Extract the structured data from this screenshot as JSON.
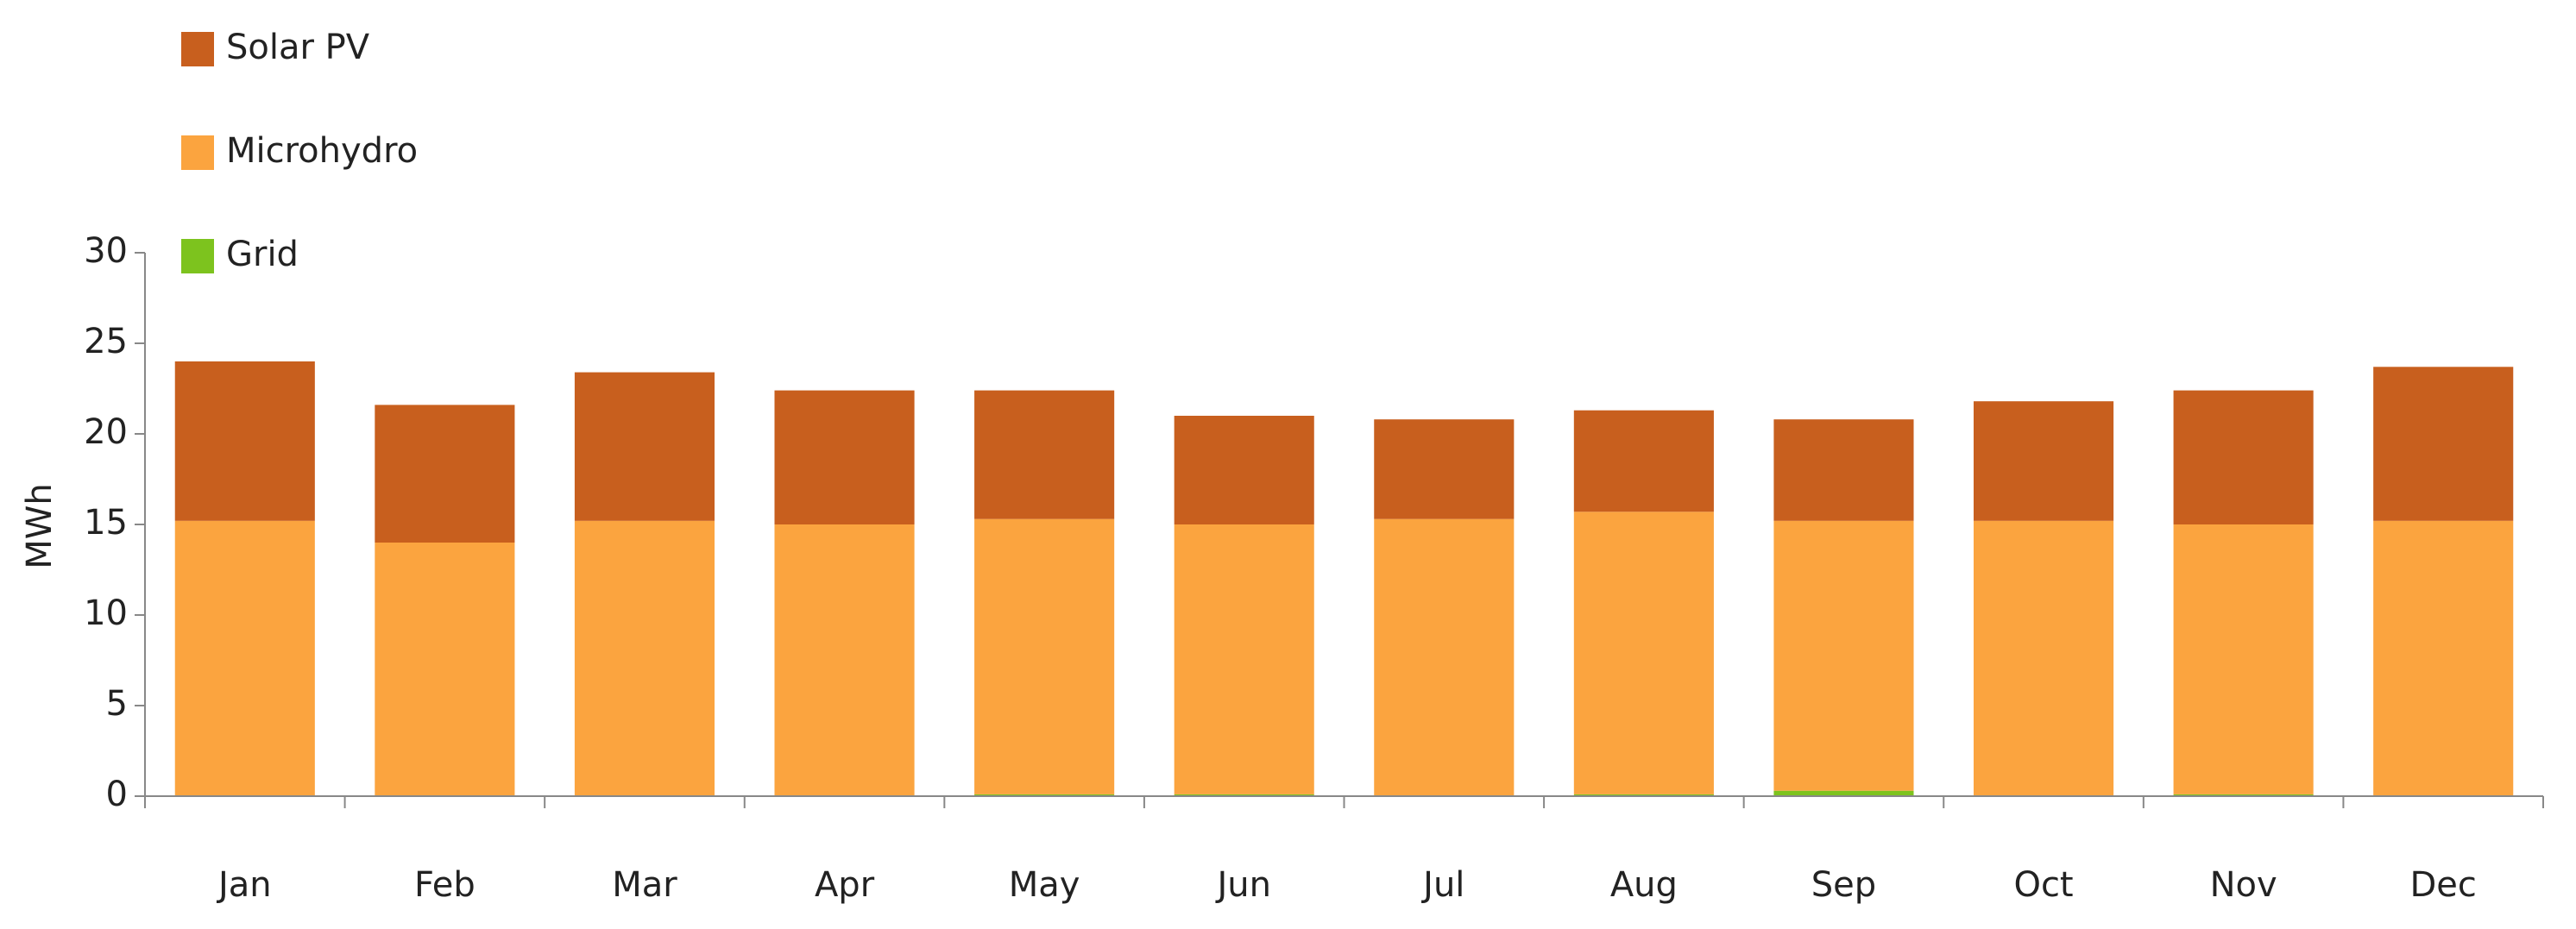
{
  "chart_data": {
    "type": "stacked_bar",
    "ylabel": "MWh",
    "categories": [
      "Jan",
      "Feb",
      "Mar",
      "Apr",
      "May",
      "Jun",
      "Jul",
      "Aug",
      "Sep",
      "Oct",
      "Nov",
      "Dec"
    ],
    "series": [
      {
        "name": "Solar PV",
        "color": "#c85f1e",
        "values": [
          8.8,
          7.6,
          8.2,
          7.4,
          7.1,
          6.0,
          5.5,
          5.6,
          5.6,
          6.6,
          7.4,
          8.5
        ]
      },
      {
        "name": "Microhydro",
        "color": "#fba43f",
        "values": [
          15.2,
          14.0,
          15.2,
          15.0,
          15.2,
          14.9,
          15.3,
          15.6,
          14.9,
          15.2,
          14.9,
          15.2
        ]
      },
      {
        "name": "Grid",
        "color": "#7dc31e",
        "values": [
          0,
          0,
          0,
          0,
          0.1,
          0.1,
          0,
          0.1,
          0.3,
          0,
          0.1,
          0
        ]
      }
    ],
    "ylim": [
      0,
      30
    ],
    "yticks": [
      0,
      5,
      10,
      15,
      20,
      25,
      30
    ],
    "legend": "top-left"
  }
}
